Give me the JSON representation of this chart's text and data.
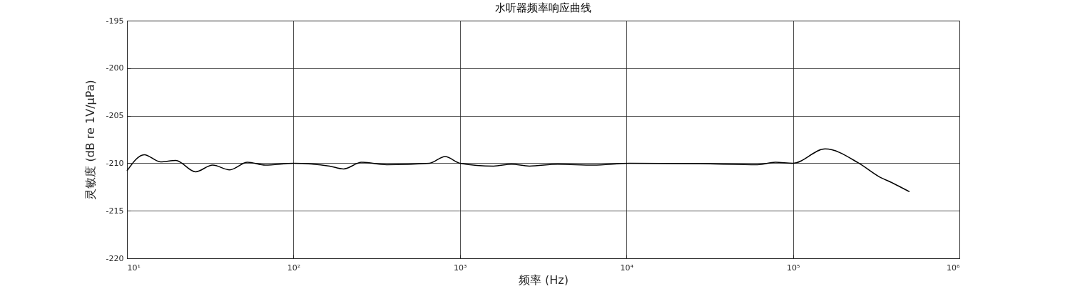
{
  "chart_data": {
    "type": "line",
    "title": "水听器频率响应曲线",
    "xlabel": "频率 (Hz)",
    "ylabel": "灵敏度 (dB re 1V/μPa)",
    "log": "x",
    "grid": true,
    "x": [
      10,
      12.7,
      15.9,
      19.6,
      25.8,
      32.7,
      41.4,
      53,
      67.8,
      100,
      165,
      200,
      257,
      363,
      656,
      815,
      1000,
      1592,
      2040,
      2610,
      3870,
      6340,
      10400,
      27900,
      61300,
      78500,
      100000,
      156000,
      249000,
      328000,
      399000,
      501000
    ],
    "series": [
      {
        "color": "#000000",
        "values": [
          -210.8,
          -209.1,
          -209.85,
          -209.7,
          -210.9,
          -210.2,
          -210.7,
          -209.9,
          -210.2,
          -210,
          -210.3,
          -210.6,
          -209.9,
          -210.15,
          -210,
          -209.3,
          -210,
          -210.3,
          -210.1,
          -210.3,
          -210.1,
          -210.2,
          -210,
          -210.05,
          -210.15,
          -209.9,
          -210,
          -208.5,
          -210,
          -211.4,
          -212.1,
          -213
        ]
      }
    ],
    "xlim": [
      10,
      1000000
    ],
    "xticks": [
      {
        "value": 10,
        "label": "10¹"
      },
      {
        "value": 100,
        "label": "10²"
      },
      {
        "value": 1000,
        "label": "10³"
      },
      {
        "value": 10000,
        "label": "10⁴"
      },
      {
        "value": 100000,
        "label": "10⁵"
      },
      {
        "value": 1000000,
        "label": "10⁶"
      }
    ],
    "ylim": [
      -220,
      -195
    ],
    "yticks": [
      -220,
      -215,
      -210,
      -205,
      -200,
      -195
    ]
  }
}
